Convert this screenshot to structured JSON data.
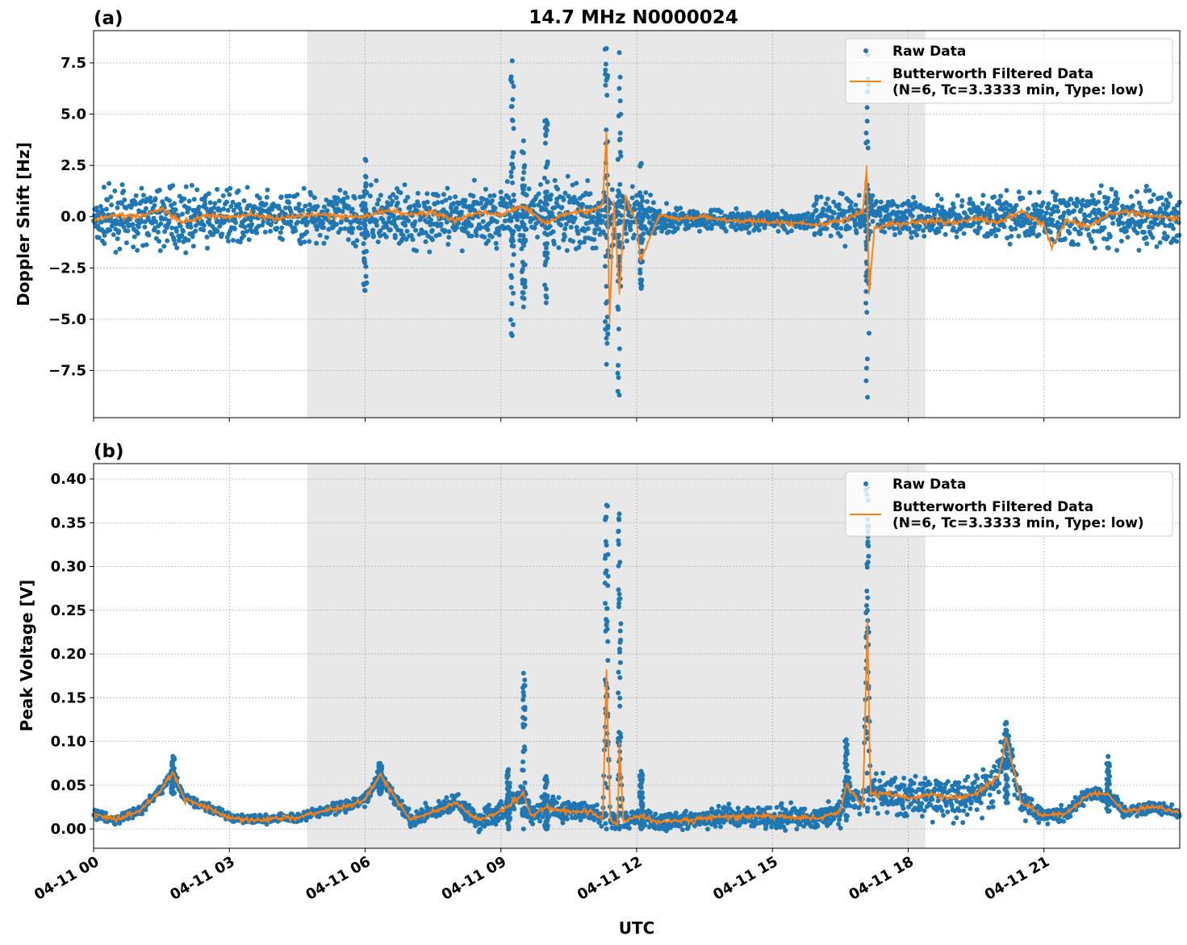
{
  "chart_data": {
    "type": "scatter",
    "title": "14.7 MHz N0000024",
    "xlabel": "UTC",
    "xticks": [
      "04-11 00",
      "04-11 03",
      "04-11 06",
      "04-11 09",
      "04-11 12",
      "04-11 15",
      "04-11 18",
      "04-11 21"
    ],
    "xlim": [
      "04-11 00:00",
      "04-12 00:00"
    ],
    "shaded_span": [
      "04-11 04:43",
      "04-11 18:23"
    ],
    "grid": true,
    "colors": {
      "raw": "#1f77b4",
      "filtered": "#ff7f0e",
      "shade": "#e8e8e8"
    },
    "legend_placement": "top-right",
    "panels": [
      {
        "label": "(a)",
        "ylabel": "Doppler Shift [Hz]",
        "ylim": [
          -9.8,
          9.07
        ],
        "yticks": [
          "7.5",
          "5.0",
          "2.5",
          "0.0",
          "−2.5",
          "−5.0",
          "−7.5"
        ],
        "ytick_values": [
          7.5,
          5,
          2.5,
          0,
          -2.5,
          -5,
          -7.5
        ],
        "series": [
          {
            "name": "Raw Data",
            "type": "scatter"
          },
          {
            "name": "Butterworth Filtered Data",
            "name_line2": "(N=6, Tc=3.3333 min, Type: low)",
            "type": "line"
          }
        ],
        "raw_envelope": {
          "x": [
            "00:00",
            "01:00",
            "02:00",
            "03:00",
            "04:00",
            "05:00",
            "06:00",
            "07:00",
            "08:00",
            "09:00",
            "10:00",
            "11:00",
            "12:00",
            "12:30",
            "13:00",
            "14:00",
            "15:00",
            "15:50",
            "16:00",
            "17:00",
            "17:30",
            "18:00",
            "19:00",
            "20:00",
            "21:00",
            "22:00",
            "23:00",
            "24:00"
          ],
          "lo": [
            -2.0,
            -2.0,
            -2.1,
            -1.8,
            -1.7,
            -1.9,
            -1.9,
            -2.0,
            -2.0,
            -2.1,
            -2.2,
            -2.4,
            -1.8,
            -1.3,
            -0.9,
            -0.9,
            -0.9,
            -0.9,
            -1.6,
            -1.6,
            -1.3,
            -1.3,
            -1.3,
            -1.5,
            -1.9,
            -2.1,
            -2.0,
            -2.0
          ],
          "hi": [
            1.8,
            2.0,
            1.9,
            1.7,
            1.6,
            1.9,
            1.9,
            2.0,
            2.0,
            2.1,
            2.2,
            2.4,
            1.8,
            1.0,
            0.7,
            0.6,
            0.5,
            0.5,
            1.6,
            1.6,
            1.2,
            1.3,
            1.3,
            1.4,
            1.7,
            1.9,
            1.9,
            1.9
          ]
        },
        "raw_spikes": [
          {
            "x": "09:15",
            "min": -5.8,
            "max": 7.6
          },
          {
            "x": "09:30",
            "min": -4.4,
            "max": 3.7
          },
          {
            "x": "10:00",
            "min": -4.2,
            "max": 4.7
          },
          {
            "x": "11:20",
            "min": -7.2,
            "max": 8.2
          },
          {
            "x": "11:37",
            "min": -8.7,
            "max": 8.0
          },
          {
            "x": "12:06",
            "min": -3.5,
            "max": 2.6
          },
          {
            "x": "17:06",
            "min": -8.8,
            "max": 7.9
          },
          {
            "x": "06:00",
            "min": -3.6,
            "max": 2.8
          }
        ],
        "filtered": {
          "x": [
            "00:00",
            "00:30",
            "01:00",
            "01:30",
            "02:00",
            "02:30",
            "03:00",
            "03:30",
            "04:00",
            "04:30",
            "05:00",
            "05:30",
            "06:00",
            "06:30",
            "07:00",
            "07:30",
            "08:00",
            "08:30",
            "09:00",
            "09:30",
            "10:00",
            "10:30",
            "11:00",
            "11:15",
            "11:20",
            "11:24",
            "11:30",
            "11:37",
            "11:45",
            "12:00",
            "12:05",
            "12:30",
            "13:00",
            "13:30",
            "14:00",
            "14:30",
            "15:00",
            "15:30",
            "16:00",
            "16:30",
            "17:00",
            "17:05",
            "17:08",
            "17:15",
            "17:30",
            "18:00",
            "18:30",
            "19:00",
            "19:30",
            "20:00",
            "20:30",
            "21:00",
            "21:10",
            "21:30",
            "22:00",
            "22:30",
            "23:00",
            "23:30",
            "24:00"
          ],
          "y": [
            -0.2,
            0.1,
            0.0,
            0.4,
            -0.3,
            0.1,
            0.0,
            0.1,
            -0.1,
            0.0,
            0.1,
            0.0,
            0.0,
            0.3,
            0.1,
            0.2,
            -0.2,
            0.2,
            0.1,
            0.5,
            -0.3,
            0.2,
            0.3,
            0.6,
            4.2,
            -5.2,
            0.8,
            -3.8,
            1.0,
            -0.3,
            -2.2,
            0.1,
            -0.1,
            0.0,
            -0.2,
            -0.2,
            -0.3,
            -0.3,
            -0.4,
            -0.2,
            0.2,
            2.5,
            -3.8,
            -0.6,
            -0.4,
            -0.3,
            -0.2,
            -0.3,
            -0.1,
            -0.3,
            0.3,
            -0.4,
            -1.5,
            -0.2,
            -0.5,
            0.2,
            0.2,
            0.0,
            -0.1
          ]
        }
      },
      {
        "label": "(b)",
        "ylabel": "Peak Voltage [V]",
        "ylim": [
          -0.022,
          0.4175
        ],
        "yticks": [
          "0.40",
          "0.35",
          "0.30",
          "0.25",
          "0.20",
          "0.15",
          "0.10",
          "0.05",
          "0.00"
        ],
        "ytick_values": [
          0.4,
          0.35,
          0.3,
          0.25,
          0.2,
          0.15,
          0.1,
          0.05,
          0
        ],
        "series": [
          {
            "name": "Raw Data",
            "type": "scatter"
          },
          {
            "name": "Butterworth Filtered Data",
            "name_line2": "(N=6, Tc=3.3333 min, Type: low)",
            "type": "line"
          }
        ],
        "raw_spread": {
          "x": [
            "00:00",
            "04:00",
            "07:00",
            "09:00",
            "12:00",
            "16:00",
            "17:30",
            "20:00",
            "21:00",
            "24:00"
          ],
          "half_width": [
            0.005,
            0.004,
            0.008,
            0.012,
            0.008,
            0.012,
            0.022,
            0.025,
            0.008,
            0.005
          ]
        },
        "raw_spikes": [
          {
            "x": "09:30",
            "min": 0.0,
            "max": 0.178
          },
          {
            "x": "09:10",
            "min": 0.0,
            "max": 0.068
          },
          {
            "x": "10:00",
            "min": 0.0,
            "max": 0.06
          },
          {
            "x": "11:20",
            "min": 0.0,
            "max": 0.37
          },
          {
            "x": "11:37",
            "min": 0.0,
            "max": 0.36
          },
          {
            "x": "12:06",
            "min": 0.0,
            "max": 0.066
          },
          {
            "x": "16:38",
            "min": 0.01,
            "max": 0.102
          },
          {
            "x": "17:06",
            "min": 0.02,
            "max": 0.39
          },
          {
            "x": "20:10",
            "min": 0.03,
            "max": 0.122
          },
          {
            "x": "22:25",
            "min": 0.02,
            "max": 0.083
          },
          {
            "x": "01:45",
            "min": 0.04,
            "max": 0.083
          },
          {
            "x": "06:20",
            "min": 0.04,
            "max": 0.075
          }
        ],
        "filtered": {
          "x": [
            "00:00",
            "00:30",
            "01:00",
            "01:30",
            "01:45",
            "02:00",
            "02:30",
            "03:00",
            "03:30",
            "04:00",
            "04:30",
            "05:00",
            "05:30",
            "06:00",
            "06:20",
            "06:40",
            "07:00",
            "07:30",
            "08:00",
            "08:30",
            "09:00",
            "09:30",
            "09:40",
            "10:00",
            "10:30",
            "11:00",
            "11:15",
            "11:20",
            "11:25",
            "11:35",
            "11:37",
            "11:42",
            "12:00",
            "12:30",
            "13:00",
            "13:30",
            "14:00",
            "15:00",
            "16:00",
            "16:30",
            "16:38",
            "17:00",
            "17:06",
            "17:10",
            "17:30",
            "18:00",
            "18:30",
            "19:00",
            "19:30",
            "20:00",
            "20:10",
            "20:30",
            "21:00",
            "21:30",
            "22:00",
            "22:25",
            "22:45",
            "23:00",
            "23:30",
            "24:00"
          ],
          "y": [
            0.018,
            0.01,
            0.02,
            0.045,
            0.065,
            0.035,
            0.025,
            0.013,
            0.01,
            0.012,
            0.013,
            0.02,
            0.025,
            0.033,
            0.063,
            0.035,
            0.01,
            0.02,
            0.03,
            0.01,
            0.02,
            0.04,
            0.015,
            0.025,
            0.02,
            0.02,
            0.01,
            0.18,
            0.01,
            0.005,
            0.1,
            0.008,
            0.015,
            0.008,
            0.01,
            0.012,
            0.015,
            0.015,
            0.012,
            0.02,
            0.05,
            0.025,
            0.24,
            0.04,
            0.04,
            0.035,
            0.04,
            0.035,
            0.04,
            0.06,
            0.105,
            0.03,
            0.015,
            0.018,
            0.04,
            0.04,
            0.02,
            0.022,
            0.025,
            0.018
          ]
        }
      }
    ]
  }
}
